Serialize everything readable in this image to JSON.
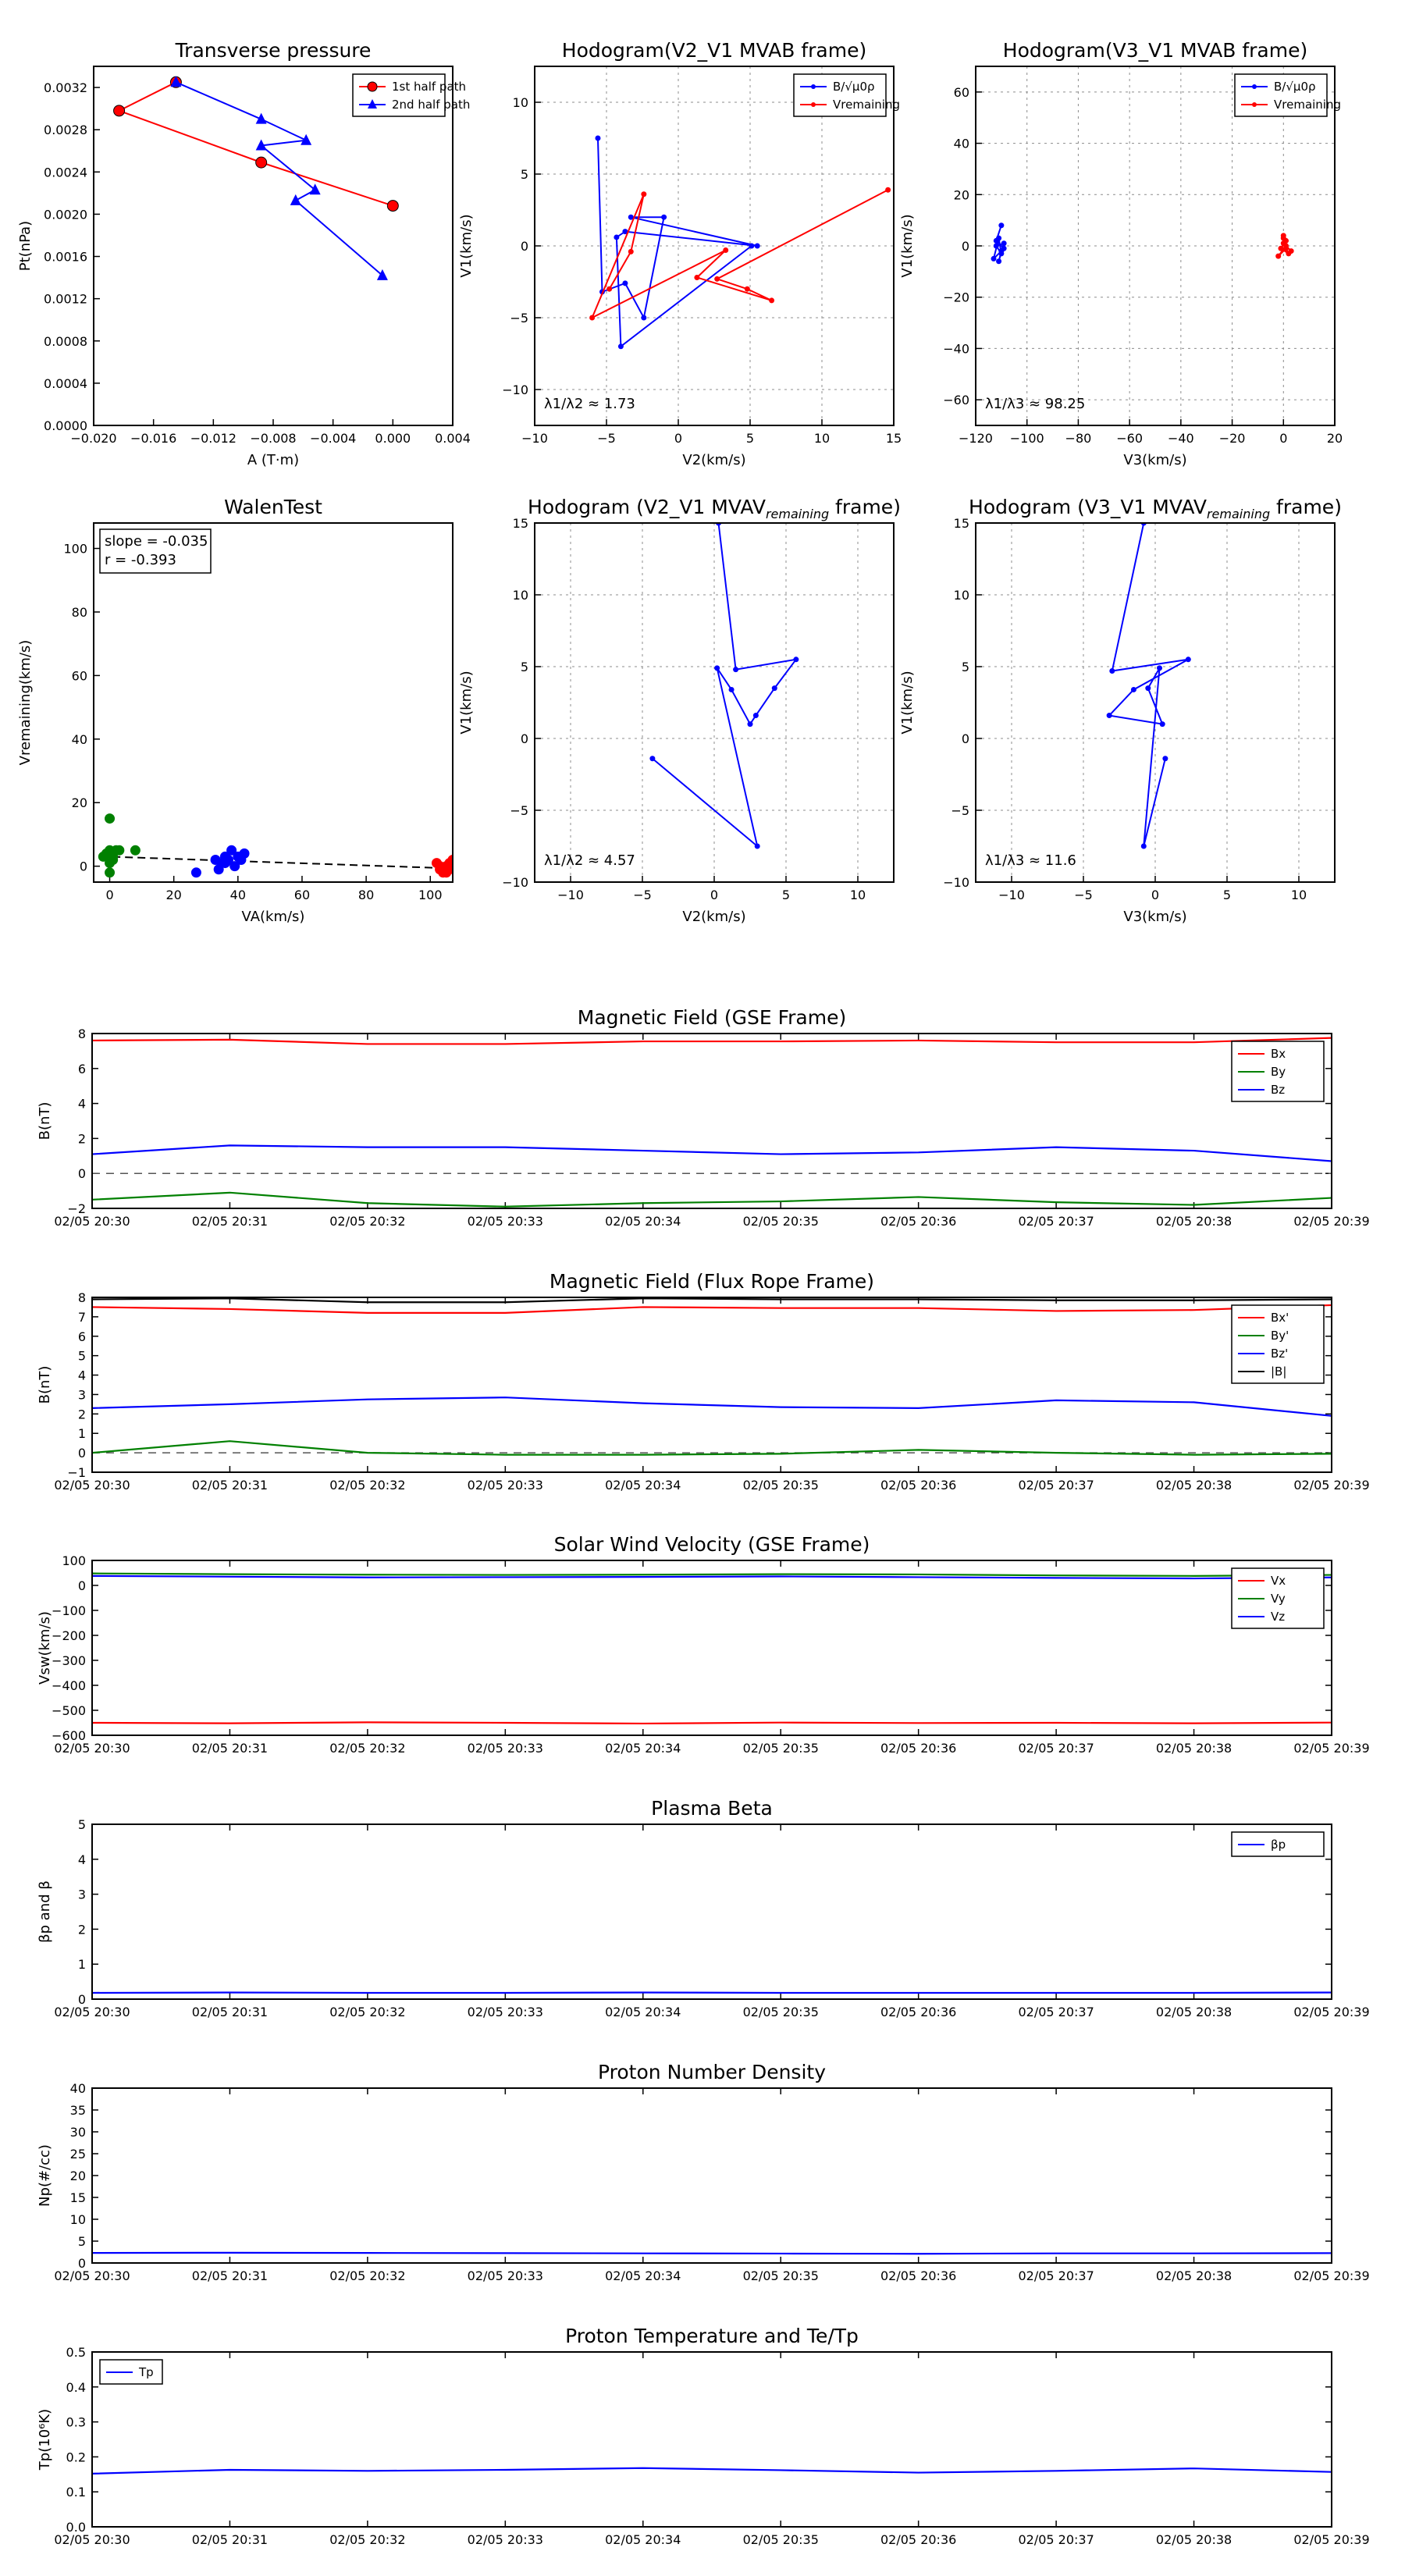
{
  "chart_data": [
    {
      "id": "transverse-pressure",
      "type": "line",
      "title": "Transverse pressure",
      "xlabel": "A (T·m)",
      "ylabel": "Pt(nPa)",
      "xlim": [
        -0.02,
        0.004
      ],
      "ylim": [
        0,
        0.0034
      ],
      "xticks": [
        "−0.020",
        "−0.016",
        "−0.012",
        "−0.008",
        "−0.004",
        "0.000",
        "0.004"
      ],
      "yticks": [
        "0.0000",
        "0.0004",
        "0.0008",
        "0.0012",
        "0.0016",
        "0.0020",
        "0.0024",
        "0.0028",
        "0.0032"
      ],
      "legend": "top-right",
      "series": [
        {
          "name": "1st half path",
          "color": "#ff0000",
          "marker": "circle",
          "x": [
            0.0,
            -0.0088,
            -0.0183,
            -0.0145
          ],
          "y": [
            0.00208,
            0.00249,
            0.00298,
            0.00325
          ]
        },
        {
          "name": "2nd half path",
          "color": "#0000ff",
          "marker": "triangle",
          "x": [
            -0.0145,
            -0.0088,
            -0.0058,
            -0.0088,
            -0.0052,
            -0.0065,
            -0.0007
          ],
          "y": [
            0.00325,
            0.0029,
            0.0027,
            0.00265,
            0.00223,
            0.00213,
            0.00142
          ]
        }
      ]
    },
    {
      "id": "hodogram-v2-v1-mvab",
      "type": "line",
      "title": "Hodogram(V2_V1 MVAB frame)",
      "xlabel": "V2(km/s)",
      "ylabel": "V1(km/s)",
      "xlim": [
        -10,
        15
      ],
      "ylim": [
        -12.5,
        12.5
      ],
      "xticks": [
        "−10",
        "−5",
        "0",
        "5",
        "10",
        "15"
      ],
      "yticks": [
        "−10",
        "−5",
        "0",
        "5",
        "10"
      ],
      "grid": true,
      "legend": "top-right",
      "annotation": "λ1/λ2 ≈ 1.73",
      "series": [
        {
          "name": "B/√μ0ρ",
          "color": "#0000ff",
          "marker": "dot",
          "x": [
            -5.6,
            -5.3,
            -3.7,
            -2.4,
            -1.0,
            -3.3,
            5.5,
            -3.7,
            -4.3,
            -4.0,
            5.1
          ],
          "y": [
            7.5,
            -3.2,
            -2.6,
            -5.0,
            2.0,
            2.0,
            0.0,
            1.0,
            0.6,
            -7.0,
            0.0
          ]
        },
        {
          "name": "Vremaining",
          "color": "#ff0000",
          "marker": "dot",
          "x": [
            14.6,
            2.7,
            4.8,
            6.5,
            1.3,
            3.3,
            -6.0,
            -2.4,
            -3.3,
            -4.8
          ],
          "y": [
            3.9,
            -2.3,
            -3.0,
            -3.8,
            -2.2,
            -0.3,
            -5.0,
            3.6,
            -0.4,
            -3.0
          ]
        }
      ]
    },
    {
      "id": "hodogram-v3-v1-mvab",
      "type": "line",
      "title": "Hodogram(V3_V1 MVAB frame)",
      "xlabel": "V3(km/s)",
      "ylabel": "V1(km/s)",
      "xlim": [
        -120,
        20
      ],
      "ylim": [
        -70,
        70
      ],
      "xticks": [
        "−120",
        "−100",
        "−80",
        "−60",
        "−40",
        "−20",
        "0",
        "20"
      ],
      "yticks": [
        "−60",
        "−40",
        "−20",
        "0",
        "20",
        "40",
        "60"
      ],
      "grid": true,
      "legend": "top-right",
      "annotation": "λ1/λ3 ≈ 98.25",
      "series": [
        {
          "name": "B/√μ0ρ",
          "color": "#0000ff",
          "marker": "dot",
          "x": [
            -110,
            -112,
            -109,
            -113,
            -111,
            -110,
            -112,
            -109,
            -111,
            -110
          ],
          "y": [
            8,
            2,
            -1,
            -5,
            3,
            -3,
            0,
            1,
            -6,
            -2
          ]
        },
        {
          "name": "Vremaining",
          "color": "#ff0000",
          "marker": "dot",
          "x": [
            0,
            1,
            -1,
            2,
            0,
            3,
            1,
            -2,
            1,
            0
          ],
          "y": [
            4,
            2,
            -1,
            -3,
            1,
            -2,
            0,
            -4,
            -1,
            3
          ]
        }
      ]
    },
    {
      "id": "walen-test",
      "type": "scatter",
      "title": "WalenTest",
      "xlabel": "VA(km/s)",
      "ylabel": "Vremaining(km/s)",
      "xlim": [
        -5,
        107
      ],
      "ylim": [
        -5,
        108
      ],
      "xticks": [
        "0",
        "20",
        "40",
        "60",
        "80",
        "100"
      ],
      "yticks": [
        "0",
        "20",
        "40",
        "60",
        "80",
        "100"
      ],
      "annotation_lines": [
        "slope = -0.035",
        "r = -0.393"
      ],
      "fit_line": {
        "x": [
          -3,
          107
        ],
        "y": [
          3.1,
          -0.7
        ]
      },
      "series": [
        {
          "color": "#008000",
          "x": [
            0,
            0,
            0,
            -2,
            2,
            0,
            1,
            -1,
            8,
            3,
            0,
            1
          ],
          "y": [
            15,
            5,
            4,
            3,
            5,
            1,
            2,
            4,
            5,
            5,
            -2,
            3
          ]
        },
        {
          "color": "#0000ff",
          "x": [
            27,
            33,
            35,
            36,
            38,
            40,
            42,
            39,
            34,
            36,
            41,
            37
          ],
          "y": [
            -2,
            2,
            1,
            3,
            5,
            3,
            4,
            0,
            -1,
            1,
            2,
            2
          ]
        },
        {
          "color": "#ff0000",
          "x": [
            102,
            103,
            104,
            105,
            106,
            107,
            103,
            105,
            106,
            104
          ],
          "y": [
            1,
            0,
            -1,
            -2,
            1,
            2,
            -1,
            0,
            -1,
            -2
          ]
        }
      ]
    },
    {
      "id": "hodogram-v2-v1-mvav",
      "type": "line",
      "title": "Hodogram (V2_V1 MVAV",
      "title_sub": "remaining",
      "title_end": " frame)",
      "xlabel": "V2(km/s)",
      "ylabel": "V1(km/s)",
      "xlim": [
        -12.5,
        12.5
      ],
      "ylim": [
        -10,
        15
      ],
      "xticks": [
        "−10",
        "−5",
        "0",
        "5",
        "10"
      ],
      "yticks": [
        "−10",
        "−5",
        "0",
        "5",
        "10",
        "15"
      ],
      "grid": true,
      "annotation": "λ1/λ2 ≈ 4.57",
      "series": [
        {
          "color": "#0000ff",
          "marker": "dot",
          "x": [
            0.3,
            1.5,
            5.7,
            4.2,
            2.9,
            2.5,
            1.2,
            0.2,
            3.0,
            -4.3
          ],
          "y": [
            15.0,
            4.8,
            5.5,
            3.5,
            1.6,
            1.0,
            3.4,
            4.9,
            -7.5,
            -1.4
          ]
        }
      ]
    },
    {
      "id": "hodogram-v3-v1-mvav",
      "type": "line",
      "title": "Hodogram (V3_V1 MVAV",
      "title_sub": "remaining",
      "title_end": " frame)",
      "xlabel": "V3(km/s)",
      "ylabel": "V1(km/s)",
      "xlim": [
        -12.5,
        12.5
      ],
      "ylim": [
        -10,
        15
      ],
      "xticks": [
        "−10",
        "−5",
        "0",
        "5",
        "10"
      ],
      "yticks": [
        "−10",
        "−5",
        "0",
        "5",
        "10",
        "15"
      ],
      "grid": true,
      "annotation": "λ1/λ3 ≈ 11.6",
      "series": [
        {
          "color": "#0000ff",
          "marker": "dot",
          "x": [
            -0.8,
            -3.0,
            2.3,
            -1.5,
            -3.2,
            0.5,
            -0.5,
            0.3,
            -0.8,
            0.7
          ],
          "y": [
            15.0,
            4.7,
            5.5,
            3.4,
            1.6,
            1.0,
            3.5,
            4.9,
            -7.5,
            -1.4
          ]
        }
      ]
    },
    {
      "id": "magnetic-field-gse",
      "type": "line",
      "title": "Magnetic Field (GSE Frame)",
      "ylabel": "B(nT)",
      "categories": [
        "02/05 20:30",
        "02/05 20:31",
        "02/05 20:32",
        "02/05 20:33",
        "02/05 20:34",
        "02/05 20:35",
        "02/05 20:36",
        "02/05 20:37",
        "02/05 20:38",
        "02/05 20:39"
      ],
      "ylim": [
        -2,
        8
      ],
      "yticks": [
        "−2",
        "0",
        "2",
        "4",
        "6",
        "8"
      ],
      "zero_line": true,
      "legend": "top-right",
      "series": [
        {
          "name": "Bx",
          "color": "#ff0000",
          "values": [
            7.6,
            7.65,
            7.4,
            7.4,
            7.55,
            7.55,
            7.6,
            7.5,
            7.5,
            7.75
          ]
        },
        {
          "name": "By",
          "color": "#008000",
          "values": [
            -1.5,
            -1.1,
            -1.7,
            -1.9,
            -1.7,
            -1.6,
            -1.35,
            -1.65,
            -1.8,
            -1.4
          ]
        },
        {
          "name": "Bz",
          "color": "#0000ff",
          "values": [
            1.1,
            1.6,
            1.5,
            1.5,
            1.3,
            1.1,
            1.2,
            1.5,
            1.3,
            0.7
          ]
        }
      ]
    },
    {
      "id": "magnetic-field-flux-rope",
      "type": "line",
      "title": "Magnetic Field (Flux Rope Frame)",
      "ylabel": "B(nT)",
      "categories": [
        "02/05 20:30",
        "02/05 20:31",
        "02/05 20:32",
        "02/05 20:33",
        "02/05 20:34",
        "02/05 20:35",
        "02/05 20:36",
        "02/05 20:37",
        "02/05 20:38",
        "02/05 20:39"
      ],
      "ylim": [
        -1,
        8
      ],
      "yticks": [
        "−1",
        "0",
        "1",
        "2",
        "3",
        "4",
        "5",
        "6",
        "7",
        "8"
      ],
      "zero_line": true,
      "legend": "top-right",
      "series": [
        {
          "name": "Bx'",
          "color": "#ff0000",
          "values": [
            7.5,
            7.4,
            7.2,
            7.2,
            7.5,
            7.45,
            7.45,
            7.3,
            7.35,
            7.6
          ]
        },
        {
          "name": "By'",
          "color": "#008000",
          "values": [
            0.0,
            0.6,
            0.0,
            -0.1,
            -0.1,
            -0.05,
            0.15,
            0.0,
            -0.1,
            -0.05
          ]
        },
        {
          "name": "Bz'",
          "color": "#0000ff",
          "values": [
            2.3,
            2.5,
            2.75,
            2.85,
            2.55,
            2.35,
            2.3,
            2.7,
            2.6,
            1.9
          ]
        },
        {
          "name": "|B|",
          "color": "#000000",
          "values": [
            7.9,
            7.95,
            7.75,
            7.75,
            7.95,
            7.9,
            7.9,
            7.85,
            7.85,
            7.9
          ]
        }
      ]
    },
    {
      "id": "solar-wind-velocity",
      "type": "line",
      "title": "Solar Wind Velocity (GSE Frame)",
      "ylabel": "Vsw(km/s)",
      "categories": [
        "02/05 20:30",
        "02/05 20:31",
        "02/05 20:32",
        "02/05 20:33",
        "02/05 20:34",
        "02/05 20:35",
        "02/05 20:36",
        "02/05 20:37",
        "02/05 20:38",
        "02/05 20:39"
      ],
      "ylim": [
        -600,
        100
      ],
      "yticks": [
        "−600",
        "−500",
        "−400",
        "−300",
        "−200",
        "−100",
        "0",
        "100"
      ],
      "legend": "top-right",
      "series": [
        {
          "name": "Vx",
          "color": "#ff0000",
          "values": [
            -550,
            -552,
            -548,
            -550,
            -553,
            -549,
            -551,
            -550,
            -552,
            -549
          ]
        },
        {
          "name": "Vy",
          "color": "#008000",
          "values": [
            48,
            45,
            43,
            42,
            43,
            45,
            44,
            40,
            38,
            42
          ]
        },
        {
          "name": "Vz",
          "color": "#0000ff",
          "values": [
            38,
            35,
            32,
            33,
            34,
            36,
            33,
            30,
            28,
            32
          ]
        }
      ]
    },
    {
      "id": "plasma-beta",
      "type": "line",
      "title": "Plasma Beta",
      "ylabel": "βp and β",
      "categories": [
        "02/05 20:30",
        "02/05 20:31",
        "02/05 20:32",
        "02/05 20:33",
        "02/05 20:34",
        "02/05 20:35",
        "02/05 20:36",
        "02/05 20:37",
        "02/05 20:38",
        "02/05 20:39"
      ],
      "ylim": [
        0,
        5
      ],
      "yticks": [
        "0",
        "1",
        "2",
        "3",
        "4",
        "5"
      ],
      "legend": "top-right",
      "series": [
        {
          "name": "βp",
          "color": "#0000ff",
          "values": [
            0.18,
            0.19,
            0.18,
            0.18,
            0.19,
            0.18,
            0.18,
            0.18,
            0.18,
            0.19
          ]
        }
      ]
    },
    {
      "id": "proton-number-density",
      "type": "line",
      "title": "Proton Number Density",
      "ylabel": "Np(#/cc)",
      "categories": [
        "02/05 20:30",
        "02/05 20:31",
        "02/05 20:32",
        "02/05 20:33",
        "02/05 20:34",
        "02/05 20:35",
        "02/05 20:36",
        "02/05 20:37",
        "02/05 20:38",
        "02/05 20:39"
      ],
      "ylim": [
        0,
        40
      ],
      "yticks": [
        "0",
        "5",
        "10",
        "15",
        "20",
        "25",
        "30",
        "35",
        "40"
      ],
      "series": [
        {
          "color": "#0000ff",
          "values": [
            2.3,
            2.35,
            2.3,
            2.25,
            2.2,
            2.15,
            2.1,
            2.2,
            2.2,
            2.25
          ]
        }
      ]
    },
    {
      "id": "proton-temperature",
      "type": "line",
      "title": "Proton Temperature and Te/Tp",
      "ylabel": "Tp(10⁶K)",
      "categories": [
        "02/05 20:30",
        "02/05 20:31",
        "02/05 20:32",
        "02/05 20:33",
        "02/05 20:34",
        "02/05 20:35",
        "02/05 20:36",
        "02/05 20:37",
        "02/05 20:38",
        "02/05 20:39"
      ],
      "ylim": [
        0,
        0.5
      ],
      "yticks": [
        "0.0",
        "0.1",
        "0.2",
        "0.3",
        "0.4",
        "0.5"
      ],
      "legend": "top-left",
      "series": [
        {
          "name": "Tp",
          "color": "#0000ff",
          "values": [
            0.152,
            0.163,
            0.16,
            0.163,
            0.168,
            0.162,
            0.155,
            0.16,
            0.167,
            0.157
          ]
        }
      ]
    }
  ]
}
